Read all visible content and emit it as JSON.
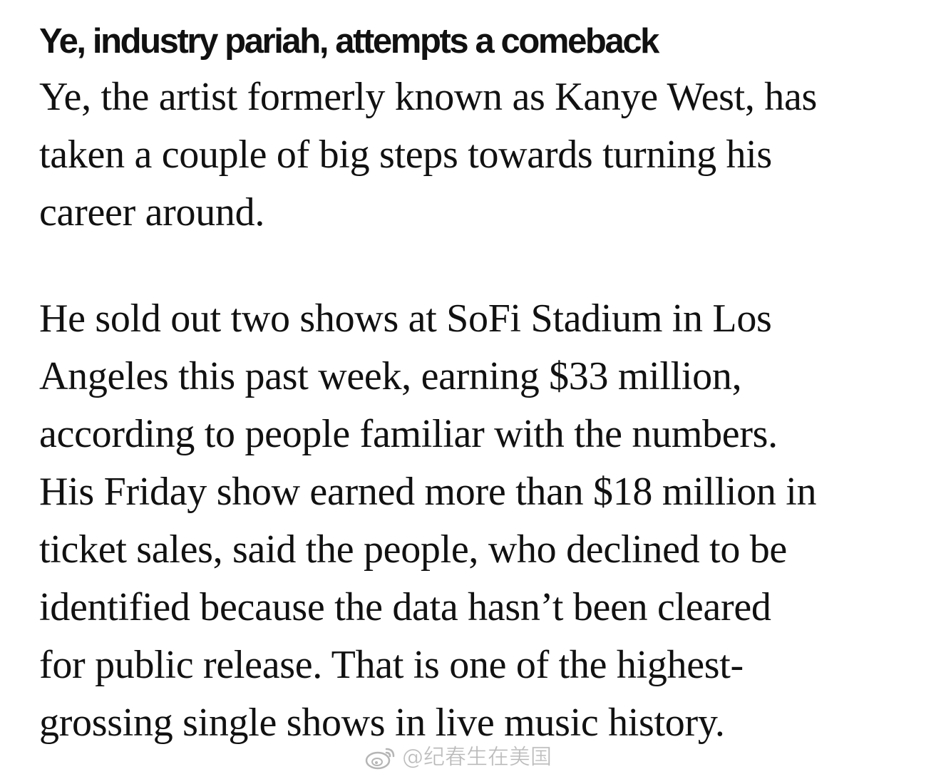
{
  "article": {
    "headline": "Ye, industry pariah, attempts a comeback",
    "paragraphs": [
      {
        "lines": [
          "Ye, the artist formerly known as Kanye West, has",
          "taken a couple of big steps towards turning his",
          "career around."
        ]
      },
      {
        "lines": [
          "He sold out two shows at SoFi Stadium in Los",
          "Angeles this past week, earning $33 million,",
          "according to people familiar with the numbers.",
          "His Friday show earned more than $18 million in",
          "ticket sales, said the people, who declined to be",
          "identified because the data hasn’t been cleared",
          "for public release. That is one of the highest-",
          "grossing single shows in live music history."
        ]
      }
    ]
  },
  "watermark": {
    "icon": "weibo-icon",
    "text": "@纪春生在美国"
  }
}
